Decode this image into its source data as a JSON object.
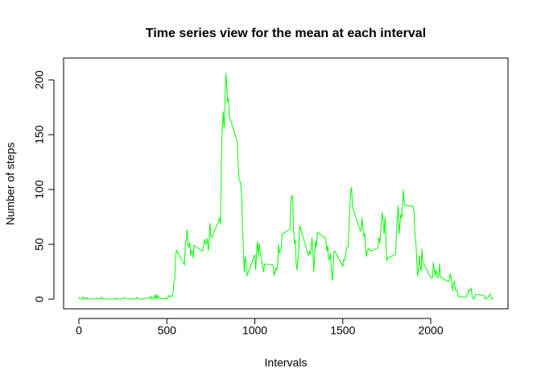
{
  "chart_data": {
    "type": "line",
    "title": "Time series view for the mean at each interval",
    "xlabel": "Intervals",
    "ylabel": "Number of steps",
    "xlim": [
      -87,
      2439
    ],
    "ylim": [
      -8.8,
      219.9
    ],
    "xticks": [
      0,
      500,
      1000,
      1500,
      2000
    ],
    "yticks": [
      0,
      50,
      100,
      150,
      200
    ],
    "series": [
      {
        "color": "#00ff00",
        "x": [
          0,
          5,
          10,
          15,
          20,
          25,
          30,
          35,
          40,
          45,
          50,
          55,
          100,
          105,
          110,
          115,
          120,
          125,
          130,
          135,
          140,
          145,
          150,
          155,
          200,
          205,
          210,
          215,
          220,
          225,
          230,
          235,
          240,
          245,
          250,
          255,
          300,
          305,
          310,
          315,
          320,
          325,
          330,
          335,
          340,
          345,
          350,
          355,
          400,
          405,
          410,
          415,
          420,
          425,
          430,
          435,
          440,
          445,
          450,
          455,
          500,
          505,
          510,
          515,
          520,
          525,
          530,
          535,
          540,
          545,
          550,
          555,
          600,
          605,
          610,
          615,
          620,
          625,
          630,
          635,
          640,
          645,
          650,
          655,
          700,
          705,
          710,
          715,
          720,
          725,
          730,
          735,
          740,
          745,
          750,
          755,
          800,
          805,
          810,
          815,
          820,
          825,
          830,
          835,
          840,
          845,
          850,
          855,
          900,
          905,
          910,
          915,
          920,
          925,
          930,
          935,
          940,
          945,
          950,
          955,
          1000,
          1005,
          1010,
          1015,
          1020,
          1025,
          1030,
          1035,
          1040,
          1045,
          1050,
          1055,
          1100,
          1105,
          1110,
          1115,
          1120,
          1125,
          1130,
          1135,
          1140,
          1145,
          1150,
          1155,
          1200,
          1205,
          1210,
          1215,
          1220,
          1225,
          1230,
          1235,
          1240,
          1245,
          1250,
          1255,
          1300,
          1305,
          1310,
          1315,
          1320,
          1325,
          1330,
          1335,
          1340,
          1345,
          1350,
          1355,
          1400,
          1405,
          1410,
          1415,
          1420,
          1425,
          1430,
          1435,
          1440,
          1445,
          1450,
          1455,
          1500,
          1505,
          1510,
          1515,
          1520,
          1525,
          1530,
          1535,
          1540,
          1545,
          1550,
          1555,
          1600,
          1605,
          1610,
          1615,
          1620,
          1625,
          1630,
          1635,
          1640,
          1645,
          1650,
          1655,
          1700,
          1705,
          1710,
          1715,
          1720,
          1725,
          1730,
          1735,
          1740,
          1745,
          1750,
          1755,
          1800,
          1805,
          1810,
          1815,
          1820,
          1825,
          1830,
          1835,
          1840,
          1845,
          1850,
          1855,
          1900,
          1905,
          1910,
          1915,
          1920,
          1925,
          1930,
          1935,
          1940,
          1945,
          1950,
          1955,
          2000,
          2005,
          2010,
          2015,
          2020,
          2025,
          2030,
          2035,
          2040,
          2045,
          2050,
          2055,
          2100,
          2105,
          2110,
          2115,
          2120,
          2125,
          2130,
          2135,
          2140,
          2145,
          2150,
          2155,
          2200,
          2205,
          2210,
          2215,
          2220,
          2225,
          2230,
          2235,
          2240,
          2245,
          2250,
          2255,
          2300,
          2305,
          2310,
          2315,
          2320,
          2325,
          2330,
          2335,
          2340,
          2345,
          2350,
          2355
        ],
        "values": [
          1.7,
          0.3,
          0.1,
          0.2,
          0.1,
          2.1,
          0.5,
          0.9,
          0,
          1.5,
          0.3,
          0.1,
          0.3,
          0.7,
          0.2,
          0.3,
          0,
          1.1,
          1.8,
          0.2,
          0.2,
          0.4,
          0.3,
          0,
          0,
          0,
          1.1,
          0,
          0,
          0.1,
          0,
          0.2,
          0,
          0,
          1.5,
          0.9,
          0,
          0,
          0,
          0,
          0.2,
          0.6,
          1.6,
          0.6,
          0.5,
          0.1,
          0,
          0,
          1.2,
          0.9,
          2.6,
          0,
          0.3,
          0.4,
          4.1,
          0.7,
          3.5,
          0.8,
          3.1,
          1.1,
          0,
          1.6,
          3,
          2.2,
          3.3,
          3,
          2.1,
          6.1,
          16,
          18.3,
          39.5,
          44.5,
          31.5,
          49.3,
          53.8,
          63.5,
          50,
          47.1,
          52.2,
          39.3,
          44,
          44.2,
          37.4,
          49,
          43.8,
          44.4,
          50.5,
          54.5,
          49.9,
          51,
          55.7,
          44.3,
          52.3,
          69.5,
          57.8,
          56.2,
          73.4,
          68.2,
          129.4,
          157.5,
          171.2,
          155.4,
          177.3,
          206.2,
          195.9,
          179.6,
          183.4,
          167,
          143.5,
          124,
          109.1,
          108.1,
          103.7,
          95.9,
          66.2,
          45.2,
          24.8,
          38.8,
          35,
          21.1,
          40.6,
          27,
          42.4,
          52.7,
          38.9,
          50.8,
          44.3,
          37.4,
          34.7,
          28.3,
          25.1,
          31.9,
          31.4,
          29.7,
          21.3,
          25.5,
          28.4,
          26.5,
          33.4,
          50,
          42,
          44.6,
          46,
          59.2,
          63.9,
          87.7,
          94.8,
          92.8,
          63.4,
          50.2,
          54.5,
          32.4,
          26.5,
          37.7,
          45.1,
          67.3,
          42.3,
          39.9,
          43.3,
          41,
          46.2,
          56.4,
          42.8,
          25.1,
          40,
          53.5,
          47.3,
          60.8,
          55.8,
          52,
          43.6,
          48.7,
          35.5,
          37.5,
          41.8,
          27.5,
          17.1,
          26.1,
          43.6,
          43.8,
          30,
          36.1,
          35.5,
          38.8,
          46,
          47.8,
          48.1,
          65.3,
          82.9,
          98.7,
          102.1,
          84,
          62.1,
          64.1,
          74.5,
          63.2,
          56.9,
          59.8,
          43.9,
          38.6,
          44.7,
          45.5,
          46.2,
          43.7,
          46.6,
          56.3,
          50.7,
          61.2,
          72.7,
          78.9,
          68.9,
          59.7,
          75.1,
          56.5,
          34.8,
          37.5,
          40.7,
          58,
          74.7,
          85.3,
          59.3,
          67.8,
          77.7,
          74.2,
          85.3,
          99.5,
          86.6,
          85.6,
          84.9,
          77.8,
          58,
          53.4,
          36.3,
          20.7,
          27.4,
          40,
          30.2,
          25.5,
          45.7,
          33.5,
          19.6,
          19,
          19.3,
          33.3,
          26.8,
          21.2,
          27.3,
          21.3,
          19.5,
          21.3,
          32.3,
          20.2,
          15.9,
          17.2,
          23.5,
          19.2,
          12.5,
          8,
          14.7,
          16.3,
          8.7,
          7.8,
          8.1,
          2.6,
          1.5,
          3.7,
          4.8,
          8.5,
          7.1,
          8.7,
          9.8,
          2.2,
          0.3,
          0.1,
          1.6,
          4.6,
          3.3,
          2.8,
          0,
          0.8,
          1,
          1.6,
          2.6,
          4.7,
          3.3,
          0.6,
          0.2,
          1.1
        ]
      }
    ]
  }
}
